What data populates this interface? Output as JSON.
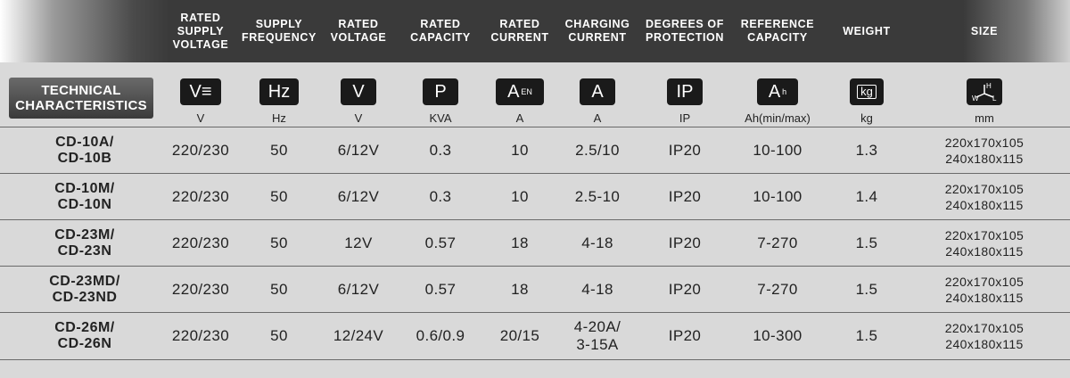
{
  "header": {
    "columns": [
      {
        "key": "supply_voltage",
        "label": "RATED\nSUPPLY\nVOLTAGE"
      },
      {
        "key": "supply_frequency",
        "label": "SUPPLY\nFREQUENCY"
      },
      {
        "key": "rated_voltage",
        "label": "RATED\nVOLTAGE"
      },
      {
        "key": "rated_capacity",
        "label": "RATED\nCAPACITY"
      },
      {
        "key": "rated_current",
        "label": "RATED\nCURRENT"
      },
      {
        "key": "charging_current",
        "label": "CHARGING\nCURRENT"
      },
      {
        "key": "protection",
        "label": "DEGREES OF\nPROTECTION"
      },
      {
        "key": "reference_capacity",
        "label": "REFERENCE\nCAPACITY"
      },
      {
        "key": "weight",
        "label": "WEIGHT"
      },
      {
        "key": "size",
        "label": "SIZE"
      }
    ]
  },
  "technical_label": "TECHNICAL\nCHARACTERISTICS",
  "icons": [
    {
      "name": "volt-dc-icon",
      "text": "V≡"
    },
    {
      "name": "hertz-icon",
      "text": "Hz"
    },
    {
      "name": "voltage-output-icon",
      "text": "V"
    },
    {
      "name": "power-icon",
      "text": "P"
    },
    {
      "name": "current-en-icon",
      "text": "A",
      "sub": "EN"
    },
    {
      "name": "current-icon",
      "text": "A"
    },
    {
      "name": "ip-rating-icon",
      "text": "IP"
    },
    {
      "name": "amp-hour-icon",
      "text": "A",
      "sub": "h"
    },
    {
      "name": "weight-kg-icon",
      "text": "kg"
    },
    {
      "name": "dimensions-icon",
      "text": "H W L"
    }
  ],
  "units": [
    "V",
    "Hz",
    "V",
    "KVA",
    "A",
    "A",
    "IP",
    "Ah(min/max)",
    "kg",
    "mm"
  ],
  "rows": [
    {
      "model": [
        "CD-10A/",
        "CD-10B"
      ],
      "values": [
        "220/230",
        "50",
        "6/12V",
        "0.3",
        "10",
        "2.5/10",
        "IP20",
        "10-100",
        "1.3"
      ],
      "size": [
        "220x170x105",
        "240x180x115"
      ]
    },
    {
      "model": [
        "CD-10M/",
        "CD-10N"
      ],
      "values": [
        "220/230",
        "50",
        "6/12V",
        "0.3",
        "10",
        "2.5-10",
        "IP20",
        "10-100",
        "1.4"
      ],
      "size": [
        "220x170x105",
        "240x180x115"
      ]
    },
    {
      "model": [
        "CD-23M/",
        "CD-23N"
      ],
      "values": [
        "220/230",
        "50",
        "12V",
        "0.57",
        "18",
        "4-18",
        "IP20",
        "7-270",
        "1.5"
      ],
      "size": [
        "220x170x105",
        "240x180x115"
      ]
    },
    {
      "model": [
        "CD-23MD/",
        "CD-23ND"
      ],
      "values": [
        "220/230",
        "50",
        "6/12V",
        "0.57",
        "18",
        "4-18",
        "IP20",
        "7-270",
        "1.5"
      ],
      "size": [
        "220x170x105",
        "240x180x115"
      ]
    },
    {
      "model": [
        "CD-26M/",
        "CD-26N"
      ],
      "values": [
        "220/230",
        "50",
        "12/24V",
        "0.6/0.9",
        "20/15",
        "4-20A/\n3-15A",
        "IP20",
        "10-300",
        "1.5"
      ],
      "size": [
        "220x170x105",
        "240x180x115"
      ]
    }
  ]
}
